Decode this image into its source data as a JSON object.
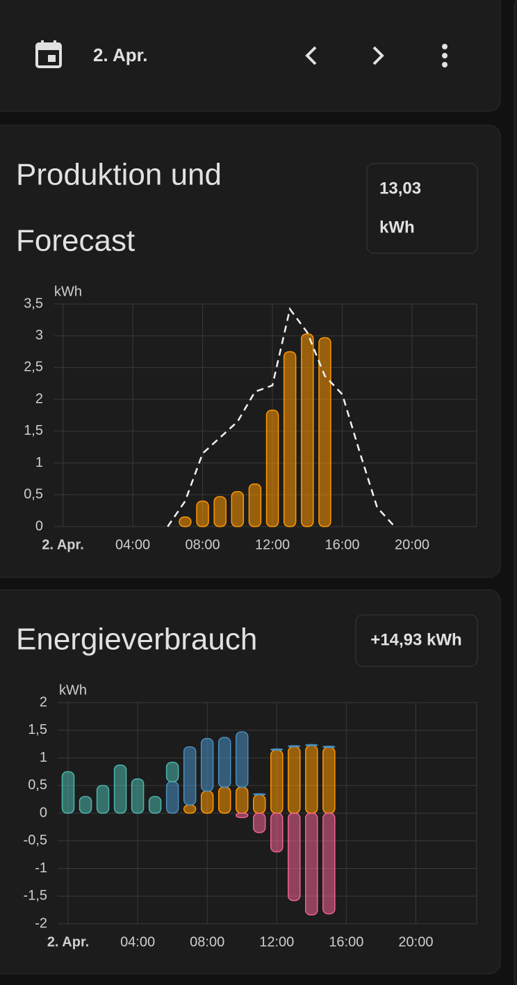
{
  "header": {
    "date": "2. Apr."
  },
  "production": {
    "title_line1": "Produktion und",
    "title_line2": "Forecast",
    "total_value": "13,03",
    "total_unit": "kWh",
    "chart": {
      "type": "bar",
      "y_unit": "kWh",
      "x": [
        0,
        1,
        2,
        3,
        4,
        5,
        6,
        7,
        8,
        9,
        10,
        11,
        12,
        13,
        14,
        15,
        16,
        17,
        18,
        19,
        20,
        21,
        22,
        23
      ],
      "series": [
        {
          "type": "bar",
          "color": "#ff9800",
          "values": [
            null,
            null,
            null,
            null,
            null,
            null,
            null,
            0.15,
            0.4,
            0.47,
            0.55,
            0.67,
            1.83,
            2.75,
            3.03,
            2.97,
            null,
            null,
            null,
            null,
            null,
            null,
            null,
            null
          ]
        },
        {
          "type": "line",
          "dashed": true,
          "color": "#f2f2f2",
          "values": [
            null,
            null,
            null,
            null,
            null,
            null,
            0,
            0.4,
            1.15,
            1.4,
            1.65,
            2.12,
            2.22,
            3.42,
            3.05,
            2.37,
            2.08,
            1.17,
            0.3,
            0,
            null,
            null,
            null,
            null
          ]
        }
      ],
      "xlim": [
        -0.5,
        23.7
      ],
      "xticks": [
        {
          "value": 0,
          "label": "2. Apr."
        },
        {
          "value": 4,
          "label": "04:00"
        },
        {
          "value": 8,
          "label": "08:00"
        },
        {
          "value": 12,
          "label": "12:00"
        },
        {
          "value": 16,
          "label": "16:00"
        },
        {
          "value": 20,
          "label": "20:00"
        }
      ],
      "ylim": [
        0,
        3.5
      ],
      "yticks": [
        0,
        {
          "value": 0.5,
          "label": "0,5"
        },
        1,
        {
          "value": 1.5,
          "label": "1,5"
        },
        2,
        {
          "value": 2.5,
          "label": "2,5"
        },
        3,
        {
          "value": 3.5,
          "label": "3,5"
        }
      ],
      "grid": true
    }
  },
  "consumption": {
    "title": "Energieverbrauch",
    "total": "+14,93 kWh",
    "chart": {
      "type": "stacked_bar",
      "y_unit": "kWh",
      "x": [
        0,
        1,
        2,
        3,
        4,
        5,
        6,
        7,
        8,
        9,
        10,
        11,
        12,
        13,
        14,
        15,
        16,
        17,
        18,
        19,
        20,
        21,
        22,
        23
      ],
      "series": [
        {
          "color": "#ff9800",
          "values": [
            null,
            null,
            null,
            null,
            null,
            null,
            null,
            0.15,
            0.4,
            0.47,
            0.47,
            0.33,
            1.14,
            1.2,
            1.22,
            1.19,
            null,
            null,
            null,
            null,
            null,
            null,
            null,
            null
          ]
        },
        {
          "color": "#488fc2",
          "values": [
            null,
            null,
            null,
            null,
            null,
            null,
            0.57,
            1.05,
            0.95,
            0.9,
            1.0,
            0.02,
            0.02,
            0.02,
            0.02,
            0.02,
            null,
            null,
            null,
            null,
            null,
            null,
            null,
            null
          ]
        },
        {
          "color": "#4db6ac",
          "values": [
            0.75,
            0.3,
            0.5,
            0.87,
            0.62,
            0.3,
            0.35,
            null,
            null,
            null,
            null,
            null,
            null,
            null,
            null,
            null,
            null,
            null,
            null,
            null,
            null,
            null,
            null,
            null
          ]
        },
        {
          "color": "#f06292",
          "values": [
            null,
            null,
            null,
            null,
            null,
            null,
            null,
            null,
            null,
            null,
            -0.08,
            -0.35,
            -0.7,
            -1.58,
            -1.84,
            -1.82,
            null,
            null,
            null,
            null,
            null,
            null,
            null,
            null
          ]
        }
      ],
      "xlim": [
        -0.6,
        23.5
      ],
      "xticks": [
        {
          "value": 0,
          "label": "2. Apr."
        },
        {
          "value": 4,
          "label": "04:00"
        },
        {
          "value": 8,
          "label": "08:00"
        },
        {
          "value": 12,
          "label": "12:00"
        },
        {
          "value": 16,
          "label": "16:00"
        },
        {
          "value": 20,
          "label": "20:00"
        }
      ],
      "ylim": [
        -2,
        2
      ],
      "yticks": [
        -2,
        {
          "value": -1.5,
          "label": "-1,5"
        },
        -1,
        {
          "value": -0.5,
          "label": "-0,5"
        },
        0,
        {
          "value": 0.5,
          "label": "0,5"
        },
        1,
        {
          "value": 1.5,
          "label": "1,5"
        },
        2
      ],
      "grid": true
    }
  }
}
